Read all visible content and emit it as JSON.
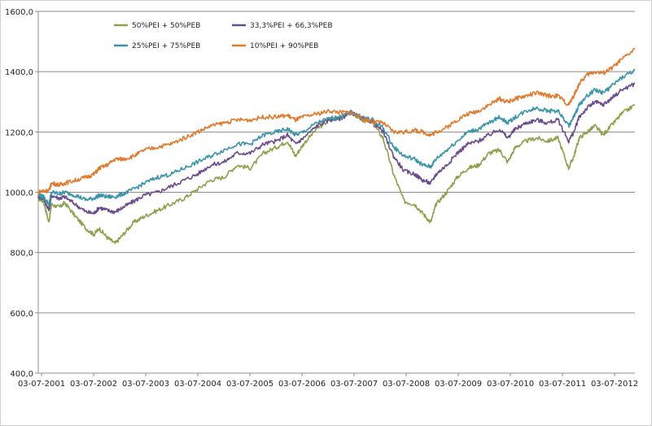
{
  "chart_data": {
    "type": "line",
    "title": "",
    "xlabel": "",
    "ylabel": "",
    "ylim": [
      400,
      1600
    ],
    "y_ticks": [
      "400,0",
      "600,0",
      "800,0",
      "1000,0",
      "1200,0",
      "1400,0",
      "1600,0"
    ],
    "y_tick_values": [
      400,
      600,
      800,
      1000,
      1200,
      1400,
      1600
    ],
    "x_tick_labels": [
      "03-07-2001",
      "03-07-2002",
      "03-07-2003",
      "03-07-2004",
      "03-07-2005",
      "03-07-2006",
      "03-07-2007",
      "03-07-2008",
      "03-07-2009",
      "03-07-2010",
      "03-07-2011",
      "03-07-2012"
    ],
    "x_range_years": [
      2001.5,
      2012.75
    ],
    "grid": "horizontal",
    "legend_position": "top-left",
    "x": [
      2001.5,
      2001.6,
      2001.7,
      2001.75,
      2001.9,
      2002.0,
      2002.2,
      2002.4,
      2002.55,
      2002.65,
      2002.8,
      2002.95,
      2003.1,
      2003.3,
      2003.5,
      2003.75,
      2004.0,
      2004.25,
      2004.5,
      2004.75,
      2005.0,
      2005.25,
      2005.5,
      2005.75,
      2006.0,
      2006.2,
      2006.35,
      2006.5,
      2006.75,
      2007.0,
      2007.2,
      2007.4,
      2007.6,
      2007.8,
      2008.0,
      2008.2,
      2008.4,
      2008.6,
      2008.75,
      2008.9,
      2009.0,
      2009.2,
      2009.4,
      2009.6,
      2009.8,
      2010.0,
      2010.2,
      2010.35,
      2010.5,
      2010.7,
      2010.9,
      2011.1,
      2011.3,
      2011.5,
      2011.6,
      2011.7,
      2011.85,
      2012.0,
      2012.15,
      2012.3,
      2012.5,
      2012.75
    ],
    "series": [
      {
        "name": "50%PEI + 50%PEB",
        "color": "#8aa04a",
        "values": [
          980,
          970,
          900,
          960,
          950,
          965,
          920,
          880,
          860,
          880,
          850,
          830,
          860,
          900,
          920,
          940,
          960,
          980,
          1010,
          1040,
          1050,
          1090,
          1080,
          1130,
          1150,
          1170,
          1120,
          1160,
          1210,
          1240,
          1250,
          1265,
          1240,
          1230,
          1180,
          1060,
          970,
          960,
          930,
          900,
          960,
          1000,
          1050,
          1080,
          1090,
          1130,
          1140,
          1100,
          1150,
          1170,
          1180,
          1170,
          1180,
          1080,
          1120,
          1180,
          1200,
          1220,
          1190,
          1220,
          1260,
          1290
        ]
      },
      {
        "name": "33,3%PEI + 66,3%PEB",
        "color": "#6a4a8c",
        "values": [
          985,
          980,
          940,
          990,
          980,
          985,
          960,
          935,
          930,
          950,
          940,
          935,
          950,
          970,
          990,
          1000,
          1020,
          1040,
          1060,
          1090,
          1100,
          1130,
          1130,
          1160,
          1170,
          1190,
          1160,
          1180,
          1220,
          1240,
          1245,
          1265,
          1245,
          1235,
          1200,
          1120,
          1070,
          1060,
          1040,
          1030,
          1060,
          1090,
          1130,
          1160,
          1170,
          1190,
          1210,
          1180,
          1210,
          1230,
          1240,
          1230,
          1240,
          1170,
          1200,
          1250,
          1280,
          1300,
          1290,
          1310,
          1340,
          1360
        ]
      },
      {
        "name": "25%PEI + 75%PEB",
        "color": "#3a95a8",
        "values": [
          990,
          985,
          960,
          1000,
          995,
          1000,
          990,
          975,
          980,
          990,
          985,
          985,
          995,
          1010,
          1030,
          1050,
          1060,
          1080,
          1100,
          1120,
          1140,
          1160,
          1160,
          1190,
          1200,
          1210,
          1190,
          1200,
          1230,
          1245,
          1250,
          1265,
          1250,
          1240,
          1215,
          1150,
          1120,
          1110,
          1090,
          1085,
          1110,
          1140,
          1170,
          1200,
          1210,
          1230,
          1250,
          1230,
          1250,
          1270,
          1280,
          1270,
          1270,
          1220,
          1250,
          1290,
          1320,
          1340,
          1330,
          1350,
          1380,
          1405
        ]
      },
      {
        "name": "10%PEI + 90%PEB",
        "color": "#e07a2e",
        "values": [
          1000,
          1005,
          1005,
          1030,
          1025,
          1030,
          1040,
          1050,
          1060,
          1080,
          1090,
          1110,
          1110,
          1120,
          1140,
          1150,
          1160,
          1180,
          1200,
          1220,
          1230,
          1240,
          1240,
          1250,
          1250,
          1255,
          1240,
          1250,
          1260,
          1270,
          1265,
          1265,
          1245,
          1235,
          1230,
          1200,
          1200,
          1205,
          1200,
          1190,
          1200,
          1215,
          1240,
          1260,
          1270,
          1290,
          1310,
          1300,
          1310,
          1320,
          1330,
          1320,
          1320,
          1290,
          1320,
          1360,
          1390,
          1400,
          1395,
          1410,
          1440,
          1475
        ]
      }
    ]
  }
}
